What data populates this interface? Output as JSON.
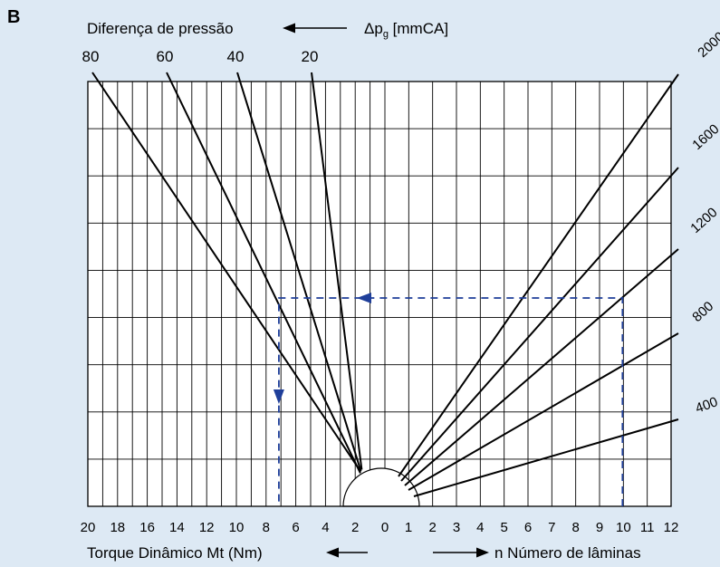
{
  "panel_letter": "B",
  "chart_data": {
    "type": "line",
    "title": "",
    "top_axis": {
      "label": "Diferença de pressão",
      "unit_symbol": "Δp",
      "unit_subscript": "g",
      "unit": "[mmCA]",
      "ticks": [
        "80",
        "60",
        "40",
        "20"
      ]
    },
    "right_axis": {
      "ticks": [
        "2000",
        "1600",
        "1200",
        "800",
        "400"
      ]
    },
    "bottom_left_axis": {
      "label": "Torque Dinâmico Mt (Nm)",
      "ticks": [
        "20",
        "18",
        "16",
        "14",
        "12",
        "10",
        "8",
        "6",
        "4",
        "2",
        "0"
      ],
      "range": [
        20,
        0
      ]
    },
    "bottom_right_axis": {
      "label": "n Número de lâminas",
      "ticks": [
        "1",
        "2",
        "3",
        "4",
        "5",
        "6",
        "7",
        "8",
        "9",
        "10",
        "11",
        "12"
      ],
      "range": [
        0,
        12
      ]
    },
    "grid": true,
    "pressure_lines": [
      {
        "value": 80,
        "label": "80"
      },
      {
        "value": 60,
        "label": "60"
      },
      {
        "value": 40,
        "label": "40"
      },
      {
        "value": 20,
        "label": "20"
      }
    ],
    "speed_lines": [
      {
        "value": 2000,
        "label": "2000"
      },
      {
        "value": 1600,
        "label": "1600"
      },
      {
        "value": 1200,
        "label": "1200"
      },
      {
        "value": 800,
        "label": "800"
      },
      {
        "value": 400,
        "label": "400"
      }
    ],
    "example_path": {
      "start_blades": 10,
      "end_torque_nm": 7.2,
      "color": "#1f3f9a"
    },
    "colors": {
      "background": "#dde9f4",
      "plot_background": "#ffffff",
      "lines": "#000000",
      "dashed": "#1f3f9a"
    }
  }
}
